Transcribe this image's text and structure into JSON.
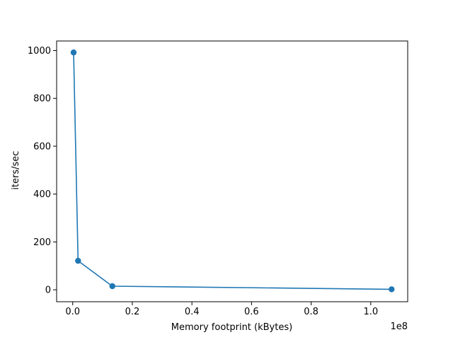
{
  "chart_data": {
    "type": "line",
    "xlabel": "Memory footprint (kBytes)",
    "ylabel": "iters/sec",
    "x_offset_label": "1e8",
    "xlim": [
      -0.054,
      1.124
    ],
    "ylim": [
      -50,
      1040
    ],
    "x_ticks": [
      0.0,
      0.2,
      0.4,
      0.6,
      0.8,
      1.0
    ],
    "x_tick_labels": [
      "0.0",
      "0.2",
      "0.4",
      "0.6",
      "0.8",
      "1.0"
    ],
    "y_ticks": [
      0,
      200,
      400,
      600,
      800,
      1000
    ],
    "y_tick_labels": [
      "0",
      "200",
      "400",
      "600",
      "800",
      "1000"
    ],
    "series": [
      {
        "color": "#1f77b4",
        "marker": "circle",
        "points": [
          {
            "x": 0.003,
            "y": 992
          },
          {
            "x": 0.018,
            "y": 121
          },
          {
            "x": 0.133,
            "y": 15
          },
          {
            "x": 1.07,
            "y": 2
          }
        ]
      }
    ],
    "grid": false,
    "legend": "none"
  }
}
